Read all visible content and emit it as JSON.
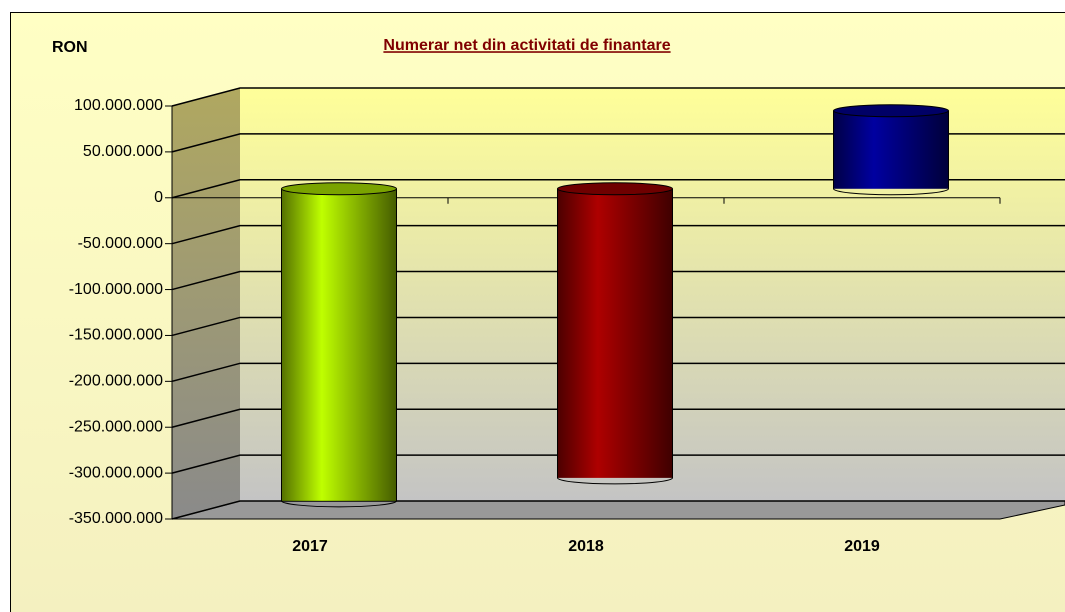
{
  "chart_data": {
    "type": "bar3d",
    "title": "Numerar net din activitati  de finantare",
    "unit_label": "RON",
    "categories": [
      "2017",
      "2018",
      "2019"
    ],
    "values": [
      -340000000,
      -315000000,
      85000000
    ],
    "colors": [
      "#99cc00",
      "#8b0000",
      "#000080"
    ],
    "ylim": [
      -350000000,
      100000000
    ],
    "yticks": [
      {
        "value": -350000000,
        "label": "-350.000.000"
      },
      {
        "value": -300000000,
        "label": "-300.000.000"
      },
      {
        "value": -250000000,
        "label": "-250.000.000"
      },
      {
        "value": -200000000,
        "label": "-200.000.000"
      },
      {
        "value": -150000000,
        "label": "-150.000.000"
      },
      {
        "value": -100000000,
        "label": "-100.000.000"
      },
      {
        "value": -50000000,
        "label": "-50.000.000"
      },
      0,
      {
        "value": 50000000,
        "label": "50.000.000"
      },
      {
        "value": 100000000,
        "label": "100.000.000"
      }
    ],
    "grid": true
  }
}
